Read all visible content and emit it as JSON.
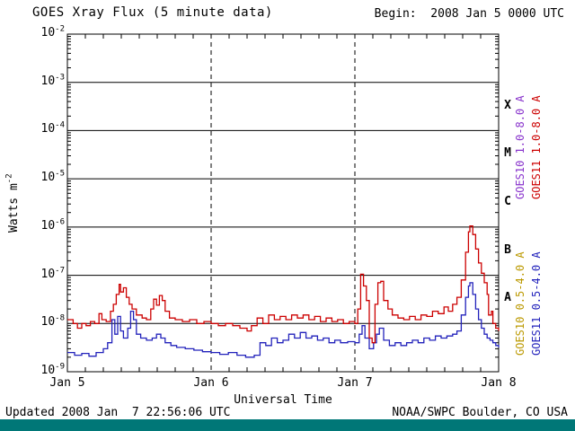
{
  "header": {
    "title": "GOES Xray Flux (5 minute data)",
    "begin_label": "Begin:  2008 Jan 5 0000 UTC"
  },
  "axes": {
    "y_tick_base": "10",
    "y_exponents": [
      "-2",
      "-3",
      "-4",
      "-5",
      "-6",
      "-7",
      "-8",
      "-9"
    ],
    "y_label_base": "Watts m",
    "y_label_exp": "-2",
    "x_label": "Universal Time",
    "x_ticks": [
      "Jan 5",
      "Jan 6",
      "Jan 7",
      "Jan 8"
    ],
    "flare_classes": [
      "X",
      "M",
      "C",
      "B",
      "A"
    ]
  },
  "legend": [
    {
      "label": "GOES10 1.0-8.0 A",
      "color": "#8833cc"
    },
    {
      "label": "GOES11 1.0-8.0 A",
      "color": "#cc0000"
    },
    {
      "label": "GOES10 0.5-4.0 A",
      "color": "#bb9900"
    },
    {
      "label": "GOES11 0.5-4.0 A",
      "color": "#2222bb"
    }
  ],
  "footer": {
    "updated": "Updated 2008 Jan  7 22:56:06 UTC",
    "source": "NOAA/SWPC Boulder, CO USA",
    "bar_color": "#007777"
  },
  "chart_data": {
    "type": "line",
    "title": "GOES Xray Flux (5 minute data)",
    "xlabel": "Universal Time",
    "ylabel": "Watts m^-2",
    "x_unit": "days since 2008 Jan 5 0000 UTC",
    "x_range": [
      0,
      3
    ],
    "x_tick_labels": [
      "Jan 5",
      "Jan 6",
      "Jan 7",
      "Jan 8"
    ],
    "y_scale": "log",
    "y_range": [
      1e-09,
      0.01
    ],
    "grid": {
      "h_lines": "every decade, solid",
      "v_lines": "day boundaries, dashed"
    },
    "flare_class_bands": {
      "X": [
        0.0001,
        0.001
      ],
      "M": [
        1e-05,
        0.0001
      ],
      "C": [
        1e-06,
        1e-05
      ],
      "B": [
        1e-07,
        1e-06
      ],
      "A": [
        1e-08,
        1e-07
      ]
    },
    "series": [
      {
        "name": "GOES10 1.0-8.0 A",
        "color": "#8833cc",
        "points": []
      },
      {
        "name": "GOES11 1.0-8.0 A",
        "color": "#cc0000",
        "points": [
          [
            0.0,
            1.2e-08
          ],
          [
            0.04,
            1e-08
          ],
          [
            0.07,
            8e-09
          ],
          [
            0.1,
            1e-08
          ],
          [
            0.13,
            9e-09
          ],
          [
            0.16,
            1.1e-08
          ],
          [
            0.19,
            1e-08
          ],
          [
            0.22,
            1.6e-08
          ],
          [
            0.24,
            1.2e-08
          ],
          [
            0.27,
            1.1e-08
          ],
          [
            0.3,
            1.8e-08
          ],
          [
            0.32,
            2.5e-08
          ],
          [
            0.34,
            4e-08
          ],
          [
            0.36,
            6.5e-08
          ],
          [
            0.37,
            4.5e-08
          ],
          [
            0.39,
            5.5e-08
          ],
          [
            0.41,
            3.5e-08
          ],
          [
            0.43,
            2.5e-08
          ],
          [
            0.45,
            2e-08
          ],
          [
            0.48,
            1.5e-08
          ],
          [
            0.52,
            1.3e-08
          ],
          [
            0.55,
            1.2e-08
          ],
          [
            0.58,
            2e-08
          ],
          [
            0.6,
            3.2e-08
          ],
          [
            0.62,
            2.4e-08
          ],
          [
            0.64,
            3.8e-08
          ],
          [
            0.66,
            3e-08
          ],
          [
            0.68,
            1.8e-08
          ],
          [
            0.71,
            1.3e-08
          ],
          [
            0.75,
            1.2e-08
          ],
          [
            0.8,
            1.1e-08
          ],
          [
            0.85,
            1.2e-08
          ],
          [
            0.9,
            1e-08
          ],
          [
            0.95,
            1.1e-08
          ],
          [
            1.0,
            1e-08
          ],
          [
            1.05,
            9e-09
          ],
          [
            1.1,
            1e-08
          ],
          [
            1.15,
            9e-09
          ],
          [
            1.2,
            8e-09
          ],
          [
            1.25,
            7e-09
          ],
          [
            1.28,
            9e-09
          ],
          [
            1.32,
            1.3e-08
          ],
          [
            1.36,
            1e-08
          ],
          [
            1.4,
            1.5e-08
          ],
          [
            1.44,
            1.2e-08
          ],
          [
            1.48,
            1.4e-08
          ],
          [
            1.52,
            1.2e-08
          ],
          [
            1.56,
            1.5e-08
          ],
          [
            1.6,
            1.3e-08
          ],
          [
            1.64,
            1.5e-08
          ],
          [
            1.68,
            1.2e-08
          ],
          [
            1.72,
            1.4e-08
          ],
          [
            1.76,
            1.1e-08
          ],
          [
            1.8,
            1.3e-08
          ],
          [
            1.84,
            1.1e-08
          ],
          [
            1.88,
            1.2e-08
          ],
          [
            1.92,
            1e-08
          ],
          [
            1.96,
            1.1e-08
          ],
          [
            2.0,
            1e-08
          ],
          [
            2.02,
            2e-08
          ],
          [
            2.04,
            1.05e-07
          ],
          [
            2.06,
            6e-08
          ],
          [
            2.08,
            3e-08
          ],
          [
            2.1,
            5e-09
          ],
          [
            2.12,
            4e-09
          ],
          [
            2.14,
            2.5e-08
          ],
          [
            2.16,
            7e-08
          ],
          [
            2.18,
            7.5e-08
          ],
          [
            2.2,
            3e-08
          ],
          [
            2.23,
            2e-08
          ],
          [
            2.26,
            1.5e-08
          ],
          [
            2.3,
            1.3e-08
          ],
          [
            2.34,
            1.2e-08
          ],
          [
            2.38,
            1.4e-08
          ],
          [
            2.42,
            1.2e-08
          ],
          [
            2.46,
            1.5e-08
          ],
          [
            2.5,
            1.4e-08
          ],
          [
            2.54,
            1.8e-08
          ],
          [
            2.58,
            1.6e-08
          ],
          [
            2.62,
            2.2e-08
          ],
          [
            2.65,
            1.8e-08
          ],
          [
            2.68,
            2.5e-08
          ],
          [
            2.71,
            3.5e-08
          ],
          [
            2.74,
            8e-08
          ],
          [
            2.77,
            3e-07
          ],
          [
            2.79,
            8e-07
          ],
          [
            2.8,
            1.05e-06
          ],
          [
            2.82,
            7e-07
          ],
          [
            2.84,
            3.5e-07
          ],
          [
            2.86,
            1.8e-07
          ],
          [
            2.88,
            1.1e-07
          ],
          [
            2.9,
            7e-08
          ],
          [
            2.92,
            4e-08
          ],
          [
            2.93,
            1.5e-08
          ],
          [
            2.95,
            1.8e-08
          ],
          [
            2.96,
            1e-08
          ],
          [
            2.98,
            8e-09
          ],
          [
            3.0,
            7e-09
          ]
        ]
      },
      {
        "name": "GOES10 0.5-4.0 A",
        "color": "#bb9900",
        "points": []
      },
      {
        "name": "GOES11 0.5-4.0 A",
        "color": "#2222bb",
        "points": [
          [
            0.0,
            2.5e-09
          ],
          [
            0.05,
            2.2e-09
          ],
          [
            0.1,
            2.4e-09
          ],
          [
            0.15,
            2.1e-09
          ],
          [
            0.2,
            2.5e-09
          ],
          [
            0.25,
            3e-09
          ],
          [
            0.28,
            4e-09
          ],
          [
            0.31,
            1.2e-08
          ],
          [
            0.33,
            6e-09
          ],
          [
            0.35,
            1.4e-08
          ],
          [
            0.37,
            7e-09
          ],
          [
            0.39,
            5e-09
          ],
          [
            0.42,
            8e-09
          ],
          [
            0.44,
            1.8e-08
          ],
          [
            0.46,
            1.2e-08
          ],
          [
            0.48,
            6e-09
          ],
          [
            0.51,
            5e-09
          ],
          [
            0.55,
            4.5e-09
          ],
          [
            0.59,
            5e-09
          ],
          [
            0.62,
            6e-09
          ],
          [
            0.65,
            5e-09
          ],
          [
            0.68,
            4e-09
          ],
          [
            0.72,
            3.5e-09
          ],
          [
            0.76,
            3.2e-09
          ],
          [
            0.82,
            3e-09
          ],
          [
            0.88,
            2.8e-09
          ],
          [
            0.94,
            2.6e-09
          ],
          [
            1.0,
            2.5e-09
          ],
          [
            1.06,
            2.3e-09
          ],
          [
            1.12,
            2.5e-09
          ],
          [
            1.18,
            2.2e-09
          ],
          [
            1.24,
            2e-09
          ],
          [
            1.3,
            2.2e-09
          ],
          [
            1.34,
            4e-09
          ],
          [
            1.38,
            3.5e-09
          ],
          [
            1.42,
            5e-09
          ],
          [
            1.46,
            4e-09
          ],
          [
            1.5,
            4.5e-09
          ],
          [
            1.54,
            6e-09
          ],
          [
            1.58,
            5e-09
          ],
          [
            1.62,
            6.5e-09
          ],
          [
            1.66,
            5e-09
          ],
          [
            1.7,
            5.5e-09
          ],
          [
            1.74,
            4.5e-09
          ],
          [
            1.78,
            5e-09
          ],
          [
            1.82,
            4e-09
          ],
          [
            1.86,
            4.5e-09
          ],
          [
            1.9,
            4e-09
          ],
          [
            1.95,
            4.2e-09
          ],
          [
            2.0,
            4e-09
          ],
          [
            2.03,
            6e-09
          ],
          [
            2.05,
            9e-09
          ],
          [
            2.07,
            5e-09
          ],
          [
            2.1,
            3e-09
          ],
          [
            2.13,
            4e-09
          ],
          [
            2.15,
            6e-09
          ],
          [
            2.17,
            8e-09
          ],
          [
            2.2,
            4.5e-09
          ],
          [
            2.24,
            3.5e-09
          ],
          [
            2.28,
            4e-09
          ],
          [
            2.32,
            3.5e-09
          ],
          [
            2.36,
            4e-09
          ],
          [
            2.4,
            4.5e-09
          ],
          [
            2.44,
            4e-09
          ],
          [
            2.48,
            5e-09
          ],
          [
            2.52,
            4.5e-09
          ],
          [
            2.56,
            5.5e-09
          ],
          [
            2.6,
            5e-09
          ],
          [
            2.64,
            5.5e-09
          ],
          [
            2.68,
            6e-09
          ],
          [
            2.71,
            7e-09
          ],
          [
            2.74,
            1.5e-08
          ],
          [
            2.77,
            3.5e-08
          ],
          [
            2.79,
            6e-08
          ],
          [
            2.8,
            7e-08
          ],
          [
            2.82,
            4e-08
          ],
          [
            2.84,
            2e-08
          ],
          [
            2.86,
            1.2e-08
          ],
          [
            2.88,
            8e-09
          ],
          [
            2.9,
            6e-09
          ],
          [
            2.92,
            5e-09
          ],
          [
            2.94,
            4.5e-09
          ],
          [
            2.96,
            4e-09
          ],
          [
            2.98,
            3.5e-09
          ],
          [
            3.0,
            3.2e-09
          ]
        ]
      }
    ]
  }
}
